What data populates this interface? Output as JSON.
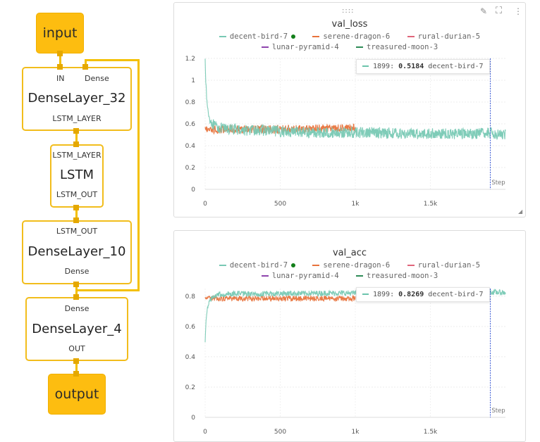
{
  "diagram": {
    "input_label": "input",
    "output_label": "output",
    "nodes": [
      {
        "title": "DenseLayer_32",
        "in_ports": [
          "IN",
          "Dense"
        ],
        "out_port": "LSTM_LAYER"
      },
      {
        "title": "LSTM",
        "in_ports": [
          "LSTM_LAYER"
        ],
        "out_port": "LSTM_OUT"
      },
      {
        "title": "DenseLayer_10",
        "in_ports": [
          "LSTM_OUT"
        ],
        "out_port": "Dense"
      },
      {
        "title": "DenseLayer_4",
        "in_ports": [
          "Dense"
        ],
        "out_port": "OUT"
      }
    ]
  },
  "panel_icons": {
    "drag": "drag-handle-icon",
    "edit": "pencil-icon",
    "fullscreen": "fullscreen-icon",
    "menu": "more-vert-icon"
  },
  "colors": {
    "decent-bird-7": "#78c9b4",
    "serene-dragon-6": "#e8733c",
    "rural-durian-5": "#e0657a",
    "lunar-pyramid-4": "#8e44ad",
    "treasured-moon-3": "#2e8b57",
    "node_border": "#f2bd1c",
    "terminal_fill": "#fdbd10"
  },
  "chart_data": [
    {
      "type": "line",
      "title": "val_loss",
      "xlabel": "Step",
      "ylabel": "",
      "xlim": [
        0,
        2000
      ],
      "ylim": [
        0,
        1.2
      ],
      "x_ticks": [
        "0",
        "500",
        "1k",
        "1.5k"
      ],
      "y_ticks": [
        "0",
        "0.2",
        "0.4",
        "0.6",
        "0.8",
        "1",
        "1.2"
      ],
      "legend": [
        "decent-bird-7",
        "serene-dragon-6",
        "rural-durian-5",
        "lunar-pyramid-4",
        "treasured-moon-3"
      ],
      "series": [
        {
          "name": "decent-bird-7",
          "x": [
            0,
            5,
            15,
            30,
            60,
            100,
            150,
            200,
            300,
            400,
            500,
            600,
            700,
            800,
            900,
            1000,
            1100,
            1200,
            1300,
            1400,
            1500,
            1600,
            1700,
            1800,
            1899,
            2000
          ],
          "y": [
            1.22,
            0.95,
            0.75,
            0.64,
            0.58,
            0.56,
            0.55,
            0.55,
            0.54,
            0.54,
            0.53,
            0.53,
            0.52,
            0.52,
            0.52,
            0.52,
            0.52,
            0.52,
            0.51,
            0.51,
            0.51,
            0.51,
            0.51,
            0.51,
            0.5184,
            0.5
          ],
          "noise": 0.05
        },
        {
          "name": "serene-dragon-6",
          "x": [
            0,
            100,
            200,
            300,
            400,
            500,
            600,
            700,
            800,
            900,
            1000
          ],
          "y": [
            0.55,
            0.55,
            0.55,
            0.55,
            0.55,
            0.55,
            0.55,
            0.55,
            0.56,
            0.56,
            0.56
          ],
          "noise": 0.04
        }
      ],
      "tooltip": {
        "step": "1899",
        "value": "0.5184",
        "series": "decent-bird-7"
      },
      "cursor_step": 1899
    },
    {
      "type": "line",
      "title": "val_acc",
      "xlabel": "Step",
      "ylabel": "",
      "xlim": [
        0,
        2000
      ],
      "ylim": [
        0,
        0.85
      ],
      "x_ticks": [
        "0",
        "500",
        "1k",
        "1.5k"
      ],
      "y_ticks": [
        "0",
        "0.2",
        "0.4",
        "0.6",
        "0.8"
      ],
      "legend": [
        "decent-bird-7",
        "serene-dragon-6",
        "rural-durian-5",
        "lunar-pyramid-4",
        "treasured-moon-3"
      ],
      "series": [
        {
          "name": "decent-bird-7",
          "x": [
            0,
            5,
            15,
            30,
            60,
            100,
            150,
            200,
            300,
            400,
            500,
            600,
            700,
            800,
            900,
            1000,
            1100,
            1200,
            1300,
            1400,
            1500,
            1600,
            1700,
            1800,
            1899,
            2000
          ],
          "y": [
            0.49,
            0.62,
            0.72,
            0.77,
            0.8,
            0.81,
            0.815,
            0.815,
            0.815,
            0.815,
            0.818,
            0.818,
            0.818,
            0.82,
            0.82,
            0.82,
            0.82,
            0.82,
            0.822,
            0.822,
            0.822,
            0.822,
            0.823,
            0.823,
            0.8269,
            0.823
          ],
          "noise": 0.018
        },
        {
          "name": "serene-dragon-6",
          "x": [
            0,
            100,
            200,
            300,
            400,
            500,
            600,
            700,
            800,
            900,
            1000
          ],
          "y": [
            0.79,
            0.785,
            0.785,
            0.785,
            0.785,
            0.785,
            0.785,
            0.785,
            0.785,
            0.785,
            0.785
          ],
          "noise": 0.018
        }
      ],
      "tooltip": {
        "step": "1899",
        "value": "0.8269",
        "series": "decent-bird-7"
      },
      "cursor_step": 1899
    }
  ]
}
